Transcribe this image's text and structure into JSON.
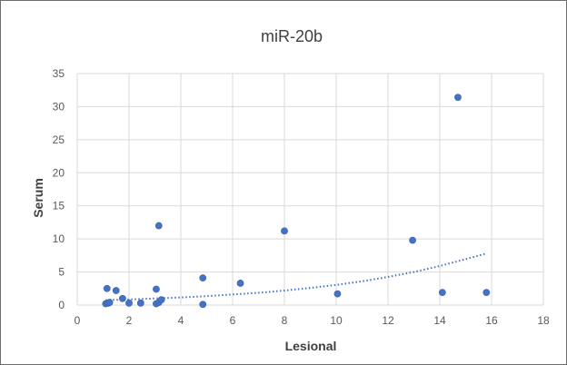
{
  "chart_data": {
    "type": "scatter",
    "title": "miR-20b",
    "xlabel": "Lesional",
    "ylabel": "Serum",
    "xlim": [
      0,
      18
    ],
    "ylim": [
      0,
      35
    ],
    "x_ticks": [
      0,
      2,
      4,
      6,
      8,
      10,
      12,
      14,
      16,
      18
    ],
    "y_ticks": [
      0,
      5,
      10,
      15,
      20,
      25,
      30,
      35
    ],
    "grid": true,
    "legend": "none",
    "colors": {
      "marker": "#4472c4",
      "trendline": "#4472c4",
      "grid": "#d9d9d9"
    },
    "series": [
      {
        "x": [
          1.1,
          1.2,
          1.15,
          1.25,
          1.5,
          1.75,
          2.0,
          2.45,
          3.05,
          3.05,
          3.15,
          3.25,
          3.15,
          4.85,
          4.85,
          6.3,
          8.0,
          10.05,
          12.95,
          14.1,
          14.7,
          15.8
        ],
        "y": [
          0.2,
          0.3,
          2.5,
          0.4,
          2.2,
          1.0,
          0.3,
          0.3,
          2.4,
          0.2,
          0.4,
          0.8,
          12.0,
          4.1,
          0.1,
          3.3,
          11.2,
          1.7,
          9.8,
          1.9,
          31.4,
          1.9
        ]
      }
    ],
    "trendline": {
      "type": "exponential",
      "x": [
        1.1,
        2,
        3,
        4,
        5,
        6,
        7,
        8,
        9,
        10,
        11,
        12,
        13,
        14,
        15,
        15.8
      ],
      "y": [
        0.75,
        0.85,
        1.0,
        1.15,
        1.35,
        1.6,
        1.85,
        2.2,
        2.6,
        3.05,
        3.6,
        4.25,
        5.0,
        5.9,
        6.95,
        7.8
      ]
    }
  }
}
